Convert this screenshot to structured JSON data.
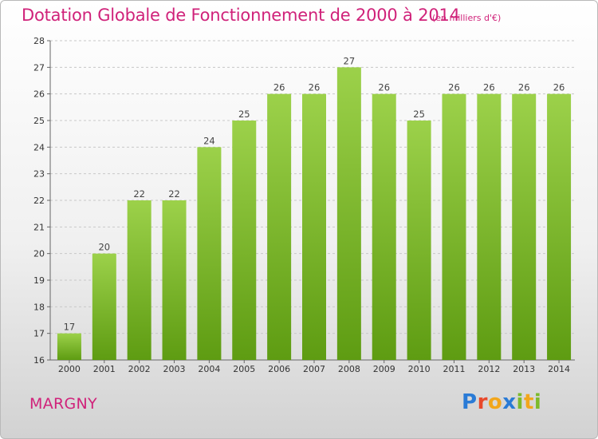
{
  "header": {
    "title": "Dotation Globale de Fonctionnement de 2000 à 2014",
    "subtitle": "(en milliers d'€)"
  },
  "commune": "MARGNY",
  "logo": {
    "text": "Proxiti",
    "letter_colors": [
      "#2a7bd6",
      "#e8492b",
      "#f2a61b",
      "#2a7bd6",
      "#7cba2b",
      "#f2a61b",
      "#7cba2b"
    ]
  },
  "colors": {
    "bar_light": "#9cd14a",
    "bar_dark": "#5e9c12",
    "accent": "#d0227a"
  },
  "chart_data": {
    "type": "bar",
    "categories": [
      "2000",
      "2001",
      "2002",
      "2003",
      "2004",
      "2005",
      "2006",
      "2007",
      "2008",
      "2009",
      "2010",
      "2011",
      "2012",
      "2013",
      "2014"
    ],
    "values": [
      17,
      20,
      22,
      22,
      24,
      25,
      26,
      26,
      27,
      26,
      25,
      26,
      26,
      26,
      26
    ],
    "title": "Dotation Globale de Fonctionnement de 2000 à 2014",
    "subtitle": "(en milliers d'€)",
    "xlabel": "",
    "ylabel": "",
    "ylim": [
      16,
      28
    ],
    "yticks": [
      16,
      17,
      18,
      19,
      20,
      21,
      22,
      23,
      24,
      25,
      26,
      27,
      28
    ],
    "grid": true,
    "data_labels": true
  }
}
